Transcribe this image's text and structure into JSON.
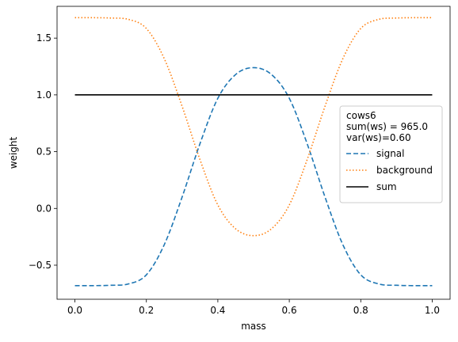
{
  "chart_data": {
    "type": "line",
    "title": "",
    "xlabel": "mass",
    "ylabel": "weight",
    "xlim": [
      -0.05,
      1.05
    ],
    "ylim": [
      -0.8,
      1.78
    ],
    "xticks": [
      0.0,
      0.2,
      0.4,
      0.6,
      0.8,
      1.0
    ],
    "xtick_labels": [
      "0.0",
      "0.2",
      "0.4",
      "0.6",
      "0.8",
      "1.0"
    ],
    "yticks": [
      -0.5,
      0.0,
      0.5,
      1.0,
      1.5
    ],
    "ytick_labels": [
      "−0.5",
      "0.0",
      "0.5",
      "1.0",
      "1.5"
    ],
    "grid": false,
    "legend": {
      "placement": "center-right",
      "title_lines": [
        "cows6",
        "sum(ws) = 965.0",
        "var(ws)=0.60"
      ]
    },
    "x": [
      0.0,
      0.05,
      0.1,
      0.15,
      0.2,
      0.25,
      0.3,
      0.35,
      0.4,
      0.45,
      0.5,
      0.55,
      0.6,
      0.65,
      0.7,
      0.75,
      0.8,
      0.85,
      0.9,
      0.95,
      1.0
    ],
    "series": [
      {
        "name": "signal",
        "style": "dashed",
        "color": "#1f77b4",
        "values": [
          -0.68,
          -0.68,
          -0.677,
          -0.665,
          -0.585,
          -0.32,
          0.1,
          0.57,
          0.97,
          1.18,
          1.24,
          1.18,
          0.97,
          0.57,
          0.1,
          -0.32,
          -0.585,
          -0.665,
          -0.677,
          -0.68,
          -0.68
        ]
      },
      {
        "name": "background",
        "style": "dotted",
        "color": "#ff7f0e",
        "values": [
          1.68,
          1.68,
          1.677,
          1.665,
          1.585,
          1.32,
          0.9,
          0.43,
          0.03,
          -0.18,
          -0.24,
          -0.18,
          0.03,
          0.43,
          0.9,
          1.32,
          1.585,
          1.665,
          1.677,
          1.68,
          1.68
        ]
      },
      {
        "name": "sum",
        "style": "solid",
        "color": "#000000",
        "values": [
          1.0,
          1.0,
          1.0,
          1.0,
          1.0,
          1.0,
          1.0,
          1.0,
          1.0,
          1.0,
          1.0,
          1.0,
          1.0,
          1.0,
          1.0,
          1.0,
          1.0,
          1.0,
          1.0,
          1.0,
          1.0
        ]
      }
    ]
  }
}
